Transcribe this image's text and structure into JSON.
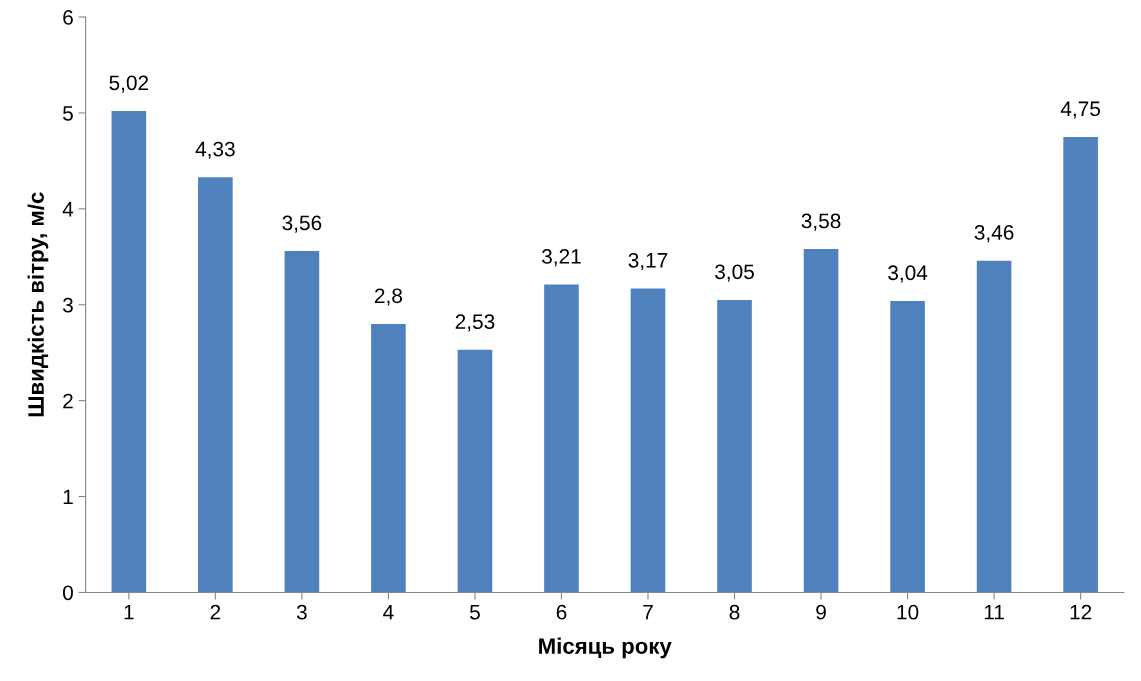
{
  "chart_data": {
    "type": "bar",
    "xlabel": "Місяць року",
    "ylabel": "Швидкість вітру, м/с",
    "categories": [
      "1",
      "2",
      "3",
      "4",
      "5",
      "6",
      "7",
      "8",
      "9",
      "10",
      "11",
      "12"
    ],
    "values": [
      5.02,
      4.33,
      3.56,
      2.8,
      2.53,
      3.21,
      3.17,
      3.05,
      3.58,
      3.04,
      3.46,
      4.75
    ],
    "value_labels": [
      "5,02",
      "4,33",
      "3,56",
      "2,8",
      "2,53",
      "3,21",
      "3,17",
      "3,05",
      "3,58",
      "3,04",
      "3,46",
      "4,75"
    ],
    "color": "#4f81bd",
    "ylim": [
      0,
      6
    ],
    "yticks": [
      0,
      1,
      2,
      3,
      4,
      5,
      6
    ],
    "grid": false
  }
}
